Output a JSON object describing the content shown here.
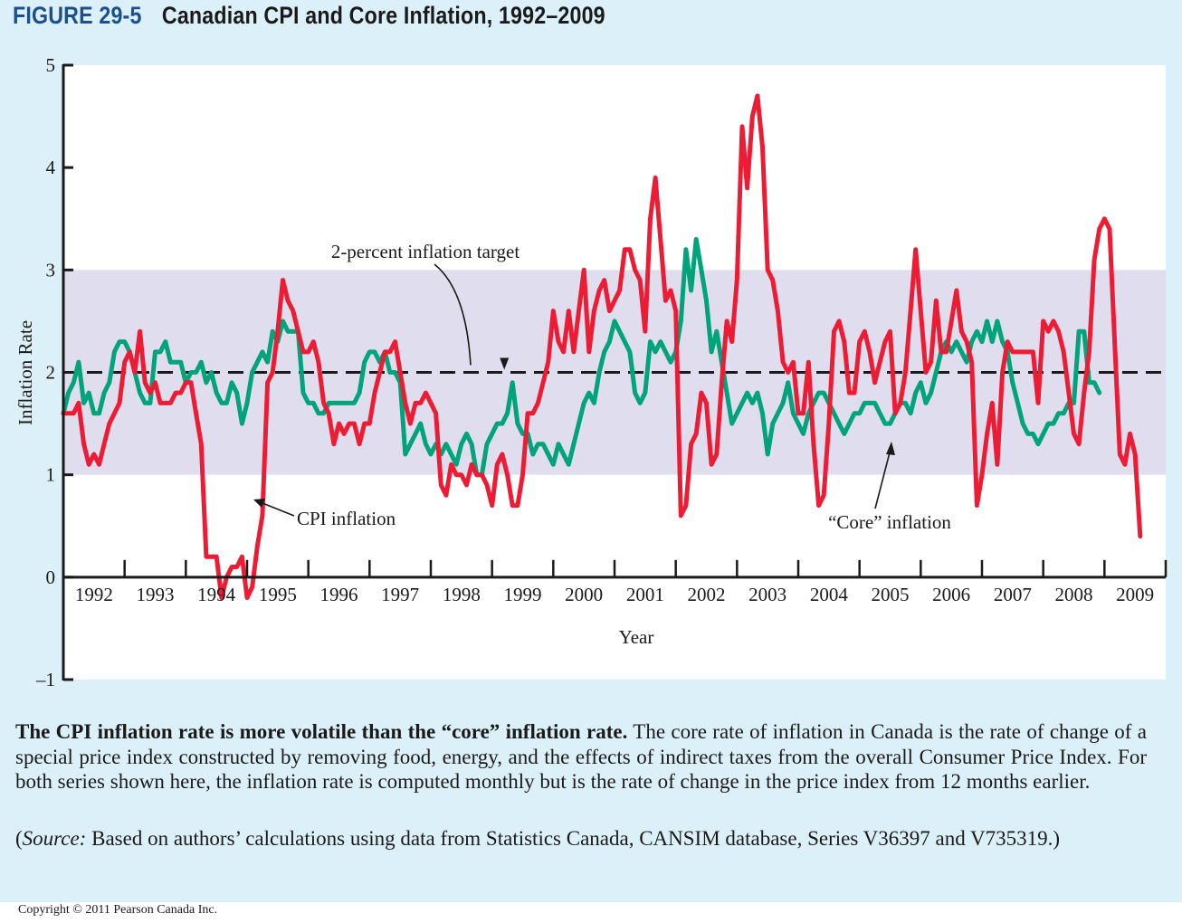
{
  "figure": {
    "number": "FIGURE 29-5",
    "title": "Canadian CPI and Core Inflation, 1992–2009"
  },
  "caption": {
    "bold_lead": "The CPI inflation rate is more volatile than the “core” inflation rate.",
    "body": " The core rate of inflation in Canada is the rate of change of a special price index constructed by removing food, energy, and the effects of indirect taxes from the overall Consumer Price Index. For both series shown here, the inflation rate is computed monthly but is the rate of change in the price index from 12 months earlier.",
    "source_open": "(",
    "source_label": "Source:",
    "source_text": " Based on authors’ calculations using data from Statistics Canada, CANSIM database, Series V36397 and V735319.)"
  },
  "copyright": "Copyright © 2011 Pearson Canada Inc.",
  "colors": {
    "panel_bg": "#dcf0f9",
    "target_band": "#e0deee",
    "cpi": "#ec1c34",
    "core": "#00a37a",
    "axis": "#1a1a1a",
    "title_blue": "#1d4f8c"
  },
  "chart_data": {
    "type": "line",
    "title": "Canadian CPI and Core Inflation, 1992–2009",
    "xlabel": "Year",
    "ylabel": "Inflation Rate",
    "ylim": [
      -1,
      5
    ],
    "yticks": [
      -1,
      0,
      1,
      2,
      3,
      4,
      5
    ],
    "ytick_labels": [
      "–1",
      "0",
      "1",
      "2",
      "3",
      "4",
      "5"
    ],
    "xlim": [
      1992,
      2010
    ],
    "xtick_labels": [
      "1992",
      "1993",
      "1994",
      "1995",
      "1996",
      "1997",
      "1998",
      "1999",
      "2000",
      "2001",
      "2002",
      "2003",
      "2004",
      "2005",
      "2006",
      "2007",
      "2008",
      "2009"
    ],
    "target_band": [
      1,
      3
    ],
    "target_line": 2,
    "grid": false,
    "annotations": [
      {
        "text": "2-percent inflation target",
        "points_to": "target line",
        "x": 1999.2,
        "y": 2
      },
      {
        "text": "CPI inflation",
        "points_to": "CPI series",
        "x": 1995.1,
        "y": 0.75
      },
      {
        "text": "“Core” inflation",
        "points_to": "Core series",
        "x": 2005.0,
        "y": 1.35
      }
    ],
    "series": [
      {
        "name": "CPI inflation",
        "x_start": 1992.0,
        "x_step_months": 1,
        "values": [
          1.6,
          1.6,
          1.6,
          1.7,
          1.3,
          1.1,
          1.2,
          1.1,
          1.3,
          1.5,
          1.6,
          1.7,
          2.1,
          2.2,
          2.0,
          2.4,
          1.9,
          1.8,
          1.9,
          1.7,
          1.7,
          1.7,
          1.8,
          1.8,
          1.9,
          1.9,
          1.6,
          1.3,
          0.2,
          0.2,
          0.2,
          -0.2,
          0.0,
          0.1,
          0.1,
          0.2,
          -0.2,
          -0.1,
          0.3,
          0.6,
          1.9,
          2.0,
          2.4,
          2.9,
          2.7,
          2.6,
          2.4,
          2.2,
          2.2,
          2.3,
          2.1,
          1.7,
          1.6,
          1.3,
          1.5,
          1.4,
          1.5,
          1.5,
          1.3,
          1.5,
          1.5,
          1.8,
          2.0,
          2.2,
          2.2,
          2.3,
          2.0,
          1.7,
          1.5,
          1.7,
          1.7,
          1.8,
          1.7,
          1.6,
          0.9,
          0.8,
          1.1,
          1.0,
          1.0,
          0.9,
          1.1,
          1.0,
          1.0,
          0.9,
          0.7,
          1.1,
          1.2,
          1.0,
          0.7,
          0.7,
          1.0,
          1.6,
          1.6,
          1.7,
          1.9,
          2.1,
          2.6,
          2.3,
          2.2,
          2.6,
          2.2,
          2.6,
          3.0,
          2.2,
          2.6,
          2.8,
          2.9,
          2.6,
          2.7,
          2.8,
          3.2,
          3.2,
          3.0,
          2.9,
          2.4,
          3.5,
          3.9,
          3.3,
          2.7,
          2.8,
          2.6,
          0.6,
          0.7,
          1.3,
          1.4,
          1.8,
          1.7,
          1.1,
          1.2,
          1.9,
          2.5,
          2.3,
          2.9,
          4.4,
          3.8,
          4.5,
          4.7,
          4.2,
          3.0,
          2.9,
          2.6,
          2.1,
          2.0,
          2.1,
          1.6,
          1.6,
          2.1,
          1.3,
          0.7,
          0.8,
          1.5,
          2.4,
          2.5,
          2.3,
          1.8,
          1.8,
          2.3,
          2.4,
          2.2,
          1.9,
          2.1,
          2.3,
          2.4,
          1.6,
          1.7,
          2.0,
          2.6,
          3.2,
          2.6,
          2.0,
          2.1,
          2.7,
          2.2,
          2.2,
          2.5,
          2.8,
          2.4,
          2.3,
          2.1,
          0.7,
          1.0,
          1.4,
          1.7,
          1.1,
          2.0,
          2.3,
          2.2,
          2.2,
          2.2,
          2.2,
          2.2,
          1.7,
          2.5,
          2.4,
          2.5,
          2.4,
          2.2,
          1.8,
          1.4,
          1.3,
          1.8,
          2.2,
          3.1,
          3.4,
          3.5,
          3.4,
          2.3,
          1.2,
          1.1,
          1.4,
          1.2,
          0.4
        ]
      },
      {
        "name": "“Core” inflation",
        "x_start": 1992.0,
        "x_step_months": 1,
        "values": [
          1.6,
          1.8,
          1.9,
          2.1,
          1.7,
          1.8,
          1.6,
          1.6,
          1.8,
          1.9,
          2.2,
          2.3,
          2.3,
          2.2,
          2.0,
          1.8,
          1.7,
          1.7,
          2.2,
          2.2,
          2.3,
          2.1,
          2.1,
          2.1,
          1.9,
          2.0,
          2.0,
          2.1,
          1.9,
          2.0,
          1.8,
          1.7,
          1.7,
          1.9,
          1.8,
          1.5,
          1.7,
          2.0,
          2.1,
          2.2,
          2.1,
          2.4,
          2.3,
          2.5,
          2.4,
          2.4,
          2.4,
          1.8,
          1.7,
          1.7,
          1.6,
          1.6,
          1.7,
          1.7,
          1.7,
          1.7,
          1.7,
          1.7,
          1.8,
          2.1,
          2.2,
          2.2,
          2.1,
          2.2,
          2.0,
          2.0,
          1.9,
          1.2,
          1.3,
          1.4,
          1.5,
          1.3,
          1.2,
          1.3,
          1.2,
          1.3,
          1.2,
          1.1,
          1.3,
          1.4,
          1.3,
          1.0,
          1.0,
          1.3,
          1.4,
          1.5,
          1.5,
          1.6,
          1.9,
          1.5,
          1.4,
          1.4,
          1.2,
          1.3,
          1.3,
          1.2,
          1.1,
          1.3,
          1.2,
          1.1,
          1.3,
          1.5,
          1.7,
          1.8,
          1.7,
          2.0,
          2.2,
          2.3,
          2.5,
          2.4,
          2.3,
          2.2,
          1.8,
          1.7,
          1.8,
          2.3,
          2.2,
          2.3,
          2.2,
          2.1,
          2.2,
          2.5,
          3.2,
          2.8,
          3.3,
          3.0,
          2.7,
          2.2,
          2.4,
          2.1,
          1.8,
          1.5,
          1.6,
          1.7,
          1.8,
          1.7,
          1.8,
          1.6,
          1.2,
          1.5,
          1.6,
          1.7,
          1.9,
          1.6,
          1.5,
          1.4,
          1.6,
          1.7,
          1.8,
          1.8,
          1.7,
          1.6,
          1.5,
          1.4,
          1.5,
          1.6,
          1.6,
          1.7,
          1.7,
          1.7,
          1.6,
          1.5,
          1.5,
          1.6,
          1.7,
          1.7,
          1.6,
          1.8,
          1.9,
          1.7,
          1.8,
          2.0,
          2.2,
          2.3,
          2.2,
          2.3,
          2.2,
          2.1,
          2.3,
          2.4,
          2.3,
          2.5,
          2.3,
          2.5,
          2.3,
          2.2,
          1.9,
          1.7,
          1.5,
          1.4,
          1.4,
          1.3,
          1.4,
          1.5,
          1.5,
          1.6,
          1.6,
          1.7,
          1.7,
          2.4,
          2.4,
          1.9,
          1.9,
          1.8
        ]
      }
    ]
  }
}
